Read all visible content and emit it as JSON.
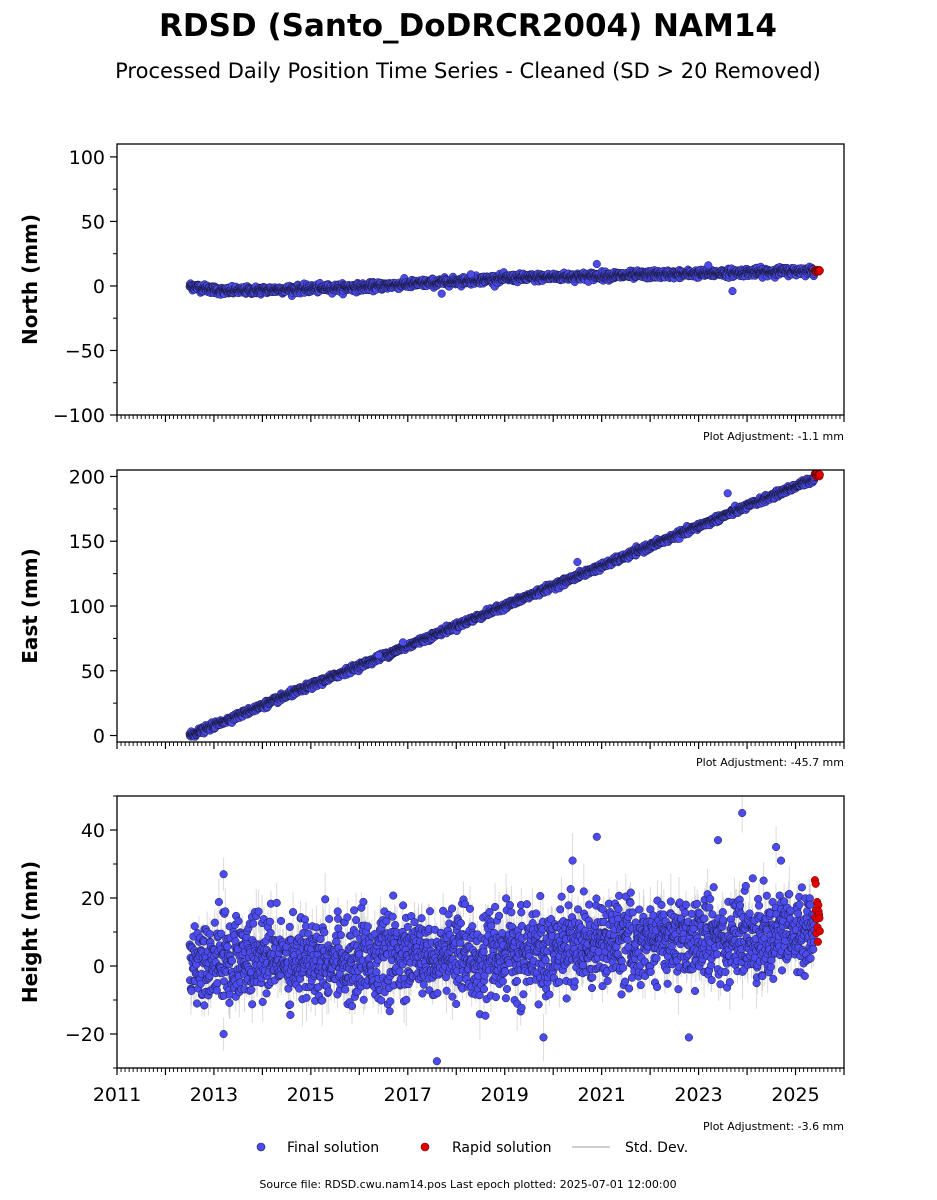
{
  "title": "RDSD (Santo_DoDRCR2004) NAM14",
  "subtitle": "Processed Daily Position Time Series - Cleaned (SD > 20 Removed)",
  "legend": {
    "final": "Final solution",
    "rapid": "Rapid solution",
    "std": "Std. Dev."
  },
  "source": "Source file: RDSD.cwu.nam14.pos  Last epoch plotted: 2025-07-01 12:00:00",
  "colors": {
    "final": "#4b4bf0",
    "rapid": "#e00000",
    "std": "#bdbdbd",
    "marker_edge": "#1a1a40"
  },
  "chart_data": [
    {
      "type": "scatter",
      "ylabel": "North (mm)",
      "xlim": [
        2011,
        2026
      ],
      "ylim": [
        -100,
        110
      ],
      "yticks": [
        -100,
        -50,
        0,
        50,
        100
      ],
      "ytick_labels": [
        "−100",
        "−50",
        "0",
        "50",
        "100"
      ],
      "adjustment": "Plot Adjustment: -1.1 mm",
      "show_xtick_labels": false,
      "final_trend": {
        "x": [
          2012.5,
          2013.2,
          2016.0,
          2019.0,
          2025.5
        ],
        "y": [
          0,
          -4,
          -1,
          6,
          12
        ]
      },
      "final_noise_sd": 1.5,
      "std_dev_mm": 1.2,
      "rapid": {
        "x_start": 2025.4,
        "x_end": 2025.5,
        "y": 12
      },
      "outliers": [
        {
          "x": 2017.7,
          "y": -6
        },
        {
          "x": 2020.9,
          "y": 17
        },
        {
          "x": 2023.7,
          "y": -4
        },
        {
          "x": 2018.3,
          "y": 9
        },
        {
          "x": 2023.2,
          "y": 16
        }
      ]
    },
    {
      "type": "scatter",
      "ylabel": "East (mm)",
      "xlim": [
        2011,
        2026
      ],
      "ylim": [
        -5,
        205
      ],
      "yticks": [
        0,
        50,
        100,
        150,
        200
      ],
      "ytick_labels": [
        "0",
        "50",
        "100",
        "150",
        "200"
      ],
      "adjustment": "Plot Adjustment: -45.7 mm",
      "show_xtick_labels": false,
      "final_trend": {
        "x": [
          2012.5,
          2025.5
        ],
        "y": [
          0,
          200
        ]
      },
      "final_noise_sd": 1.2,
      "std_dev_mm": 1.2,
      "rapid": {
        "x_start": 2025.4,
        "x_end": 2025.5,
        "y": 201
      },
      "outliers": [
        {
          "x": 2016.9,
          "y": 72
        },
        {
          "x": 2023.6,
          "y": 187
        },
        {
          "x": 2016.4,
          "y": 62
        },
        {
          "x": 2020.5,
          "y": 134
        }
      ]
    },
    {
      "type": "scatter",
      "ylabel": "Height (mm)",
      "xlim": [
        2011,
        2026
      ],
      "ylim": [
        -30,
        50
      ],
      "yticks": [
        -20,
        0,
        20,
        40
      ],
      "ytick_labels": [
        "−20",
        "0",
        "20",
        "40"
      ],
      "adjustment": "Plot Adjustment: -3.6 mm",
      "show_xtick_labels": true,
      "xticks": [
        2011,
        2013,
        2015,
        2017,
        2019,
        2021,
        2023,
        2025
      ],
      "xtick_labels": [
        "2011",
        "2013",
        "2015",
        "2017",
        "2019",
        "2021",
        "2023",
        "2025"
      ],
      "final_trend": {
        "x": [
          2012.5,
          2019.5,
          2020.3,
          2025.5
        ],
        "y": [
          2,
          3,
          6,
          10
        ]
      },
      "final_noise_sd": 6.0,
      "std_dev_mm": 5.5,
      "rapid": {
        "x_start": 2025.4,
        "x_end": 2025.5,
        "y": 12,
        "spread": 6
      },
      "outliers": [
        {
          "x": 2013.2,
          "y": 27
        },
        {
          "x": 2020.9,
          "y": 38
        },
        {
          "x": 2023.9,
          "y": 45
        },
        {
          "x": 2023.4,
          "y": 37
        },
        {
          "x": 2024.6,
          "y": 35
        },
        {
          "x": 2017.6,
          "y": -28
        },
        {
          "x": 2019.8,
          "y": -21
        },
        {
          "x": 2022.8,
          "y": -21
        },
        {
          "x": 2013.2,
          "y": -20
        },
        {
          "x": 2024.7,
          "y": 31
        },
        {
          "x": 2020.4,
          "y": 31
        }
      ]
    }
  ]
}
